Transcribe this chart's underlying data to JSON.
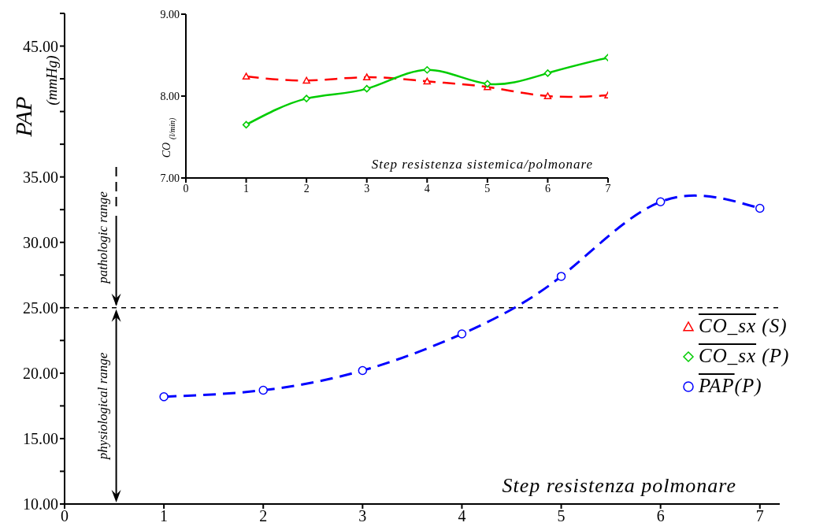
{
  "chart_data": [
    {
      "type": "line",
      "xlabel": "Step resistenza polmonare",
      "ylabel": "PAP (mmHg)",
      "x": [
        1,
        2,
        3,
        4,
        5,
        6,
        7
      ],
      "series": [
        {
          "name": "PAP(P)",
          "color": "#0000ff",
          "values": [
            18.2,
            18.7,
            20.2,
            23.0,
            27.4,
            33.1,
            32.6
          ],
          "marker": "circle",
          "line_style": "dashed"
        }
      ],
      "xlim": [
        0,
        7.2
      ],
      "xticks": [
        0,
        1,
        2,
        3,
        4,
        5,
        6,
        7
      ],
      "ylim": [
        10,
        47.5
      ],
      "yticks": [
        {
          "value": 10,
          "label": "10.00"
        },
        {
          "value": 12.5,
          "label": null
        },
        {
          "value": 15,
          "label": "15.00"
        },
        {
          "value": 17.5,
          "label": null
        },
        {
          "value": 20,
          "label": "20.00"
        },
        {
          "value": 22.5,
          "label": null
        },
        {
          "value": 25,
          "label": "25.00"
        },
        {
          "value": 27.5,
          "label": null
        },
        {
          "value": 30,
          "label": "30.00"
        },
        {
          "value": 32.5,
          "label": null
        },
        {
          "value": 35,
          "label": "35.00"
        },
        {
          "value": 37.5,
          "label": null
        },
        {
          "value": 40,
          "label": null
        },
        {
          "value": 42.5,
          "label": null
        },
        {
          "value": 45,
          "label": "45.00"
        },
        {
          "value": 47.5,
          "label": null
        }
      ],
      "ref_lines": [
        {
          "axis": "y",
          "value": 25,
          "color": "#000000",
          "line_style": "dashed"
        }
      ],
      "annotations": [
        {
          "text": "pathologic range",
          "x": 0.52,
          "y": 25
        },
        "physiological range"
      ],
      "legend": "right",
      "grid": false
    },
    {
      "type": "line",
      "xlabel": "Step resistenza sistemica/polmonare",
      "ylabel": "CO $_{(l/min)}$",
      "legend": "right",
      "x": [
        1,
        2,
        3,
        4,
        5,
        6,
        7
      ],
      "series": [
        {
          "name": "CO_sx (S)",
          "color": "#ff0000",
          "values": [
            8.24,
            8.19,
            8.23,
            8.18,
            8.11,
            8.0,
            8.01
          ],
          "marker": "triangle",
          "line_style": "dashed"
        },
        {
          "name": "CO_sx (P)",
          "color": "#00cc00",
          "values": [
            7.65,
            7.97,
            8.09,
            8.32,
            8.15,
            8.28,
            8.47
          ],
          "marker": "diamond",
          "line_style": "solid"
        }
      ],
      "xlim": [
        0,
        7
      ],
      "xticks": [
        0,
        1,
        2,
        3,
        4,
        5,
        6,
        7
      ],
      "ylim": [
        7,
        9
      ],
      "yticks": [
        {
          "value": 7,
          "label": "7.00"
        },
        {
          "value": 8,
          "label": "8.00"
        },
        {
          "value": 9,
          "label": "9.00"
        }
      ],
      "grid": false
    }
  ]
}
